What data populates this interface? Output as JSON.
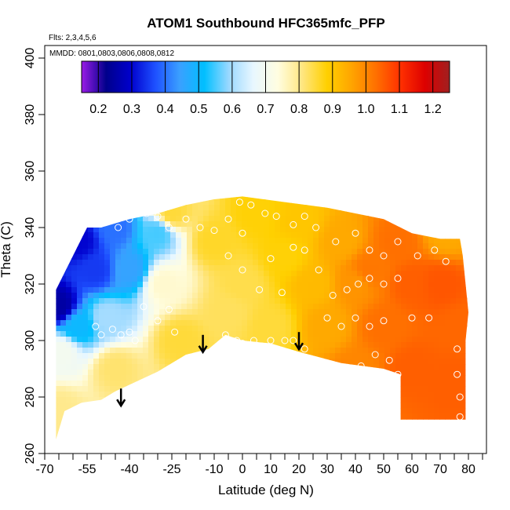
{
  "chart_data": {
    "type": "heatmap",
    "title": "ATOM1 Southbound HFC365mfc_PFP",
    "annotations": [
      "Flts: 2,3,4,5,6",
      "MMDD: 0801,0803,0806,0808,0812"
    ],
    "xlabel": "Latitude (deg N)",
    "ylabel": "Theta (C)",
    "xlim": [
      -70,
      85
    ],
    "ylim": [
      260,
      405
    ],
    "x_ticks": [
      -70,
      -55,
      -40,
      -25,
      -10,
      0,
      10,
      20,
      30,
      40,
      50,
      60,
      70,
      80
    ],
    "x_tick_labels": [
      "-70",
      "-55",
      "-40",
      "-25",
      "-10",
      "0",
      "10",
      "20",
      "30",
      "40",
      "50",
      "60",
      "70",
      "80"
    ],
    "y_ticks": [
      260,
      280,
      300,
      320,
      340,
      360,
      380,
      400
    ],
    "y_tick_labels": [
      "260",
      "280",
      "300",
      "320",
      "340",
      "360",
      "380",
      "400"
    ],
    "colorbar": {
      "min": 0.15,
      "max": 1.25,
      "ticks": [
        0.2,
        0.3,
        0.4,
        0.5,
        0.6,
        0.7,
        0.8,
        0.9,
        1.0,
        1.1,
        1.2
      ],
      "tick_labels": [
        "0.2",
        "0.3",
        "0.4",
        "0.5",
        "0.6",
        "0.7",
        "0.8",
        "0.9",
        "1.0",
        "1.1",
        "1.2"
      ],
      "colors": [
        "#9a1ce6",
        "#00008b",
        "#0000cd",
        "#1e50ff",
        "#3aa0ff",
        "#00bfff",
        "#9ad8ff",
        "#e8f7ff",
        "#fffde0",
        "#ffe680",
        "#ffd000",
        "#ffa500",
        "#ff7000",
        "#ff3000",
        "#dd0000",
        "#a02020"
      ]
    },
    "field_samples": [
      {
        "lat": -65,
        "theta": 312,
        "value": 0.25
      },
      {
        "lat": -58,
        "theta": 335,
        "value": 0.3
      },
      {
        "lat": -52,
        "theta": 325,
        "value": 0.35
      },
      {
        "lat": -45,
        "theta": 340,
        "value": 0.4
      },
      {
        "lat": -40,
        "theta": 325,
        "value": 0.45
      },
      {
        "lat": -58,
        "theta": 305,
        "value": 0.5
      },
      {
        "lat": -48,
        "theta": 308,
        "value": 0.6
      },
      {
        "lat": -64,
        "theta": 296,
        "value": 0.7
      },
      {
        "lat": -30,
        "theta": 338,
        "value": 0.55
      },
      {
        "lat": -28,
        "theta": 320,
        "value": 0.75
      },
      {
        "lat": -65,
        "theta": 275,
        "value": 0.8
      },
      {
        "lat": -45,
        "theta": 290,
        "value": 0.82
      },
      {
        "lat": -22,
        "theta": 300,
        "value": 0.85
      },
      {
        "lat": -25,
        "theta": 345,
        "value": 0.85
      },
      {
        "lat": -10,
        "theta": 335,
        "value": 0.86
      },
      {
        "lat": -5,
        "theta": 310,
        "value": 0.83
      },
      {
        "lat": 0,
        "theta": 320,
        "value": 0.84
      },
      {
        "lat": 5,
        "theta": 345,
        "value": 0.88
      },
      {
        "lat": 10,
        "theta": 305,
        "value": 0.85
      },
      {
        "lat": 15,
        "theta": 330,
        "value": 0.88
      },
      {
        "lat": 20,
        "theta": 342,
        "value": 0.9
      },
      {
        "lat": 25,
        "theta": 320,
        "value": 0.92
      },
      {
        "lat": 30,
        "theta": 305,
        "value": 0.95
      },
      {
        "lat": 35,
        "theta": 335,
        "value": 0.95
      },
      {
        "lat": 40,
        "theta": 320,
        "value": 0.98
      },
      {
        "lat": 40,
        "theta": 290,
        "value": 1.0
      },
      {
        "lat": 45,
        "theta": 325,
        "value": 1.02
      },
      {
        "lat": 50,
        "theta": 305,
        "value": 1.03
      },
      {
        "lat": 55,
        "theta": 335,
        "value": 1.03
      },
      {
        "lat": 60,
        "theta": 290,
        "value": 1.05
      },
      {
        "lat": 60,
        "theta": 320,
        "value": 1.05
      },
      {
        "lat": 70,
        "theta": 320,
        "value": 1.06
      },
      {
        "lat": 75,
        "theta": 285,
        "value": 1.05
      },
      {
        "lat": 78,
        "theta": 305,
        "value": 1.04
      },
      {
        "lat": 72,
        "theta": 338,
        "value": 0.95
      }
    ],
    "region_outline": [
      [
        -66,
        265
      ],
      [
        -63,
        275
      ],
      [
        -57,
        278
      ],
      [
        -50,
        279
      ],
      [
        -45,
        282
      ],
      [
        -30,
        289
      ],
      [
        -20,
        295
      ],
      [
        -12,
        297
      ],
      [
        -6,
        302
      ],
      [
        0,
        300
      ],
      [
        10,
        299
      ],
      [
        20,
        296
      ],
      [
        35,
        292
      ],
      [
        50,
        290
      ],
      [
        56,
        288
      ],
      [
        56,
        272
      ],
      [
        79,
        272
      ],
      [
        79,
        300
      ],
      [
        80,
        310
      ],
      [
        79,
        320
      ],
      [
        78,
        330
      ],
      [
        77,
        336
      ],
      [
        70,
        336
      ],
      [
        60,
        338
      ],
      [
        50,
        343
      ],
      [
        40,
        345
      ],
      [
        30,
        347
      ],
      [
        15,
        349
      ],
      [
        0,
        351
      ],
      [
        -10,
        350
      ],
      [
        -20,
        348
      ],
      [
        -30,
        345
      ],
      [
        -40,
        343
      ],
      [
        -50,
        340
      ],
      [
        -55,
        340
      ],
      [
        -60,
        330
      ],
      [
        -66,
        318
      ],
      [
        -66,
        310
      ],
      [
        -66,
        290
      ]
    ],
    "sample_points": [
      [
        -52,
        305
      ],
      [
        -50,
        302
      ],
      [
        -46,
        304
      ],
      [
        -43,
        302
      ],
      [
        -40,
        303
      ],
      [
        -38,
        300
      ],
      [
        -35,
        312
      ],
      [
        -30,
        307
      ],
      [
        -26,
        311
      ],
      [
        -24,
        303
      ],
      [
        -44,
        340
      ],
      [
        -40,
        343
      ],
      [
        -34,
        345
      ],
      [
        -30,
        344
      ],
      [
        -26,
        340
      ],
      [
        -20,
        343
      ],
      [
        -15,
        340
      ],
      [
        -10,
        339
      ],
      [
        -5,
        343
      ],
      [
        0,
        338
      ],
      [
        -6,
        302
      ],
      [
        -2,
        300
      ],
      [
        0,
        299
      ],
      [
        4,
        300
      ],
      [
        10,
        300
      ],
      [
        15,
        300
      ],
      [
        18,
        300
      ],
      [
        22,
        297
      ],
      [
        -1,
        349
      ],
      [
        3,
        348
      ],
      [
        8,
        345
      ],
      [
        12,
        344
      ],
      [
        18,
        341
      ],
      [
        22,
        344
      ],
      [
        26,
        340
      ],
      [
        -5,
        330
      ],
      [
        0,
        325
      ],
      [
        6,
        318
      ],
      [
        10,
        329
      ],
      [
        14,
        317
      ],
      [
        18,
        333
      ],
      [
        22,
        332
      ],
      [
        27,
        325
      ],
      [
        30,
        308
      ],
      [
        35,
        305
      ],
      [
        40,
        308
      ],
      [
        45,
        305
      ],
      [
        50,
        307
      ],
      [
        42,
        291
      ],
      [
        47,
        295
      ],
      [
        52,
        293
      ],
      [
        32,
        316
      ],
      [
        37,
        318
      ],
      [
        41,
        320
      ],
      [
        45,
        322
      ],
      [
        50,
        320
      ],
      [
        55,
        322
      ],
      [
        33,
        335
      ],
      [
        40,
        338
      ],
      [
        45,
        332
      ],
      [
        50,
        330
      ],
      [
        55,
        335
      ],
      [
        62,
        330
      ],
      [
        68,
        332
      ],
      [
        72,
        328
      ],
      [
        75,
        338
      ],
      [
        55,
        288
      ],
      [
        60,
        308
      ],
      [
        66,
        308
      ],
      [
        76,
        297
      ],
      [
        76,
        288
      ],
      [
        77,
        280
      ],
      [
        77,
        273
      ]
    ],
    "arrows": [
      {
        "lat": -43,
        "theta": 283
      },
      {
        "lat": -14,
        "theta": 302
      },
      {
        "lat": 20,
        "theta": 303
      }
    ]
  }
}
